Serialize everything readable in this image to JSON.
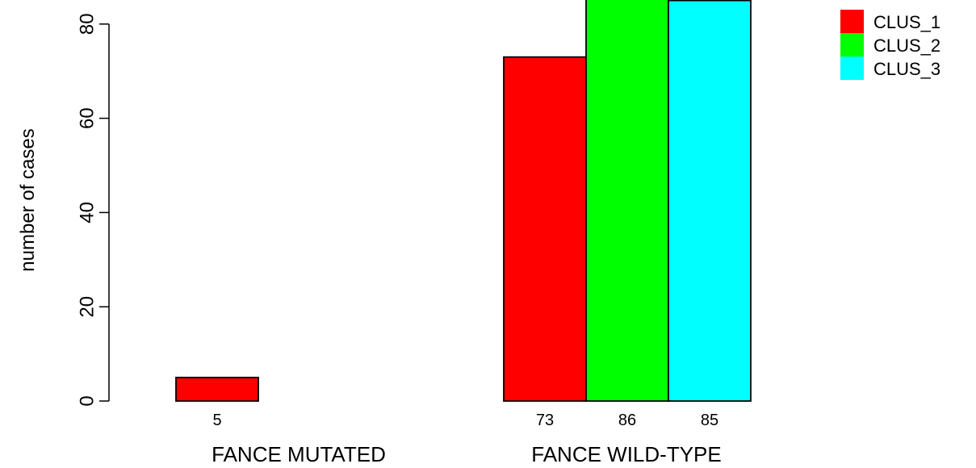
{
  "chart_data": {
    "type": "bar",
    "title": "",
    "xlabel": "",
    "ylabel": "number of cases",
    "ylim": [
      0,
      85
    ],
    "yticks": [
      0,
      20,
      40,
      60,
      80
    ],
    "grid": false,
    "legend_position": "top-right",
    "categories": [
      "FANCE MUTATED",
      "FANCE WILD-TYPE"
    ],
    "series": [
      {
        "name": "CLUS_1",
        "color": "#ff0000",
        "values": [
          5,
          73
        ]
      },
      {
        "name": "CLUS_2",
        "color": "#00ff00",
        "values": [
          0,
          86
        ]
      },
      {
        "name": "CLUS_3",
        "color": "#00ffff",
        "values": [
          0,
          85
        ]
      }
    ],
    "data_labels": [
      [
        "5",
        "",
        ""
      ],
      [
        "73",
        "86",
        "85"
      ]
    ]
  }
}
